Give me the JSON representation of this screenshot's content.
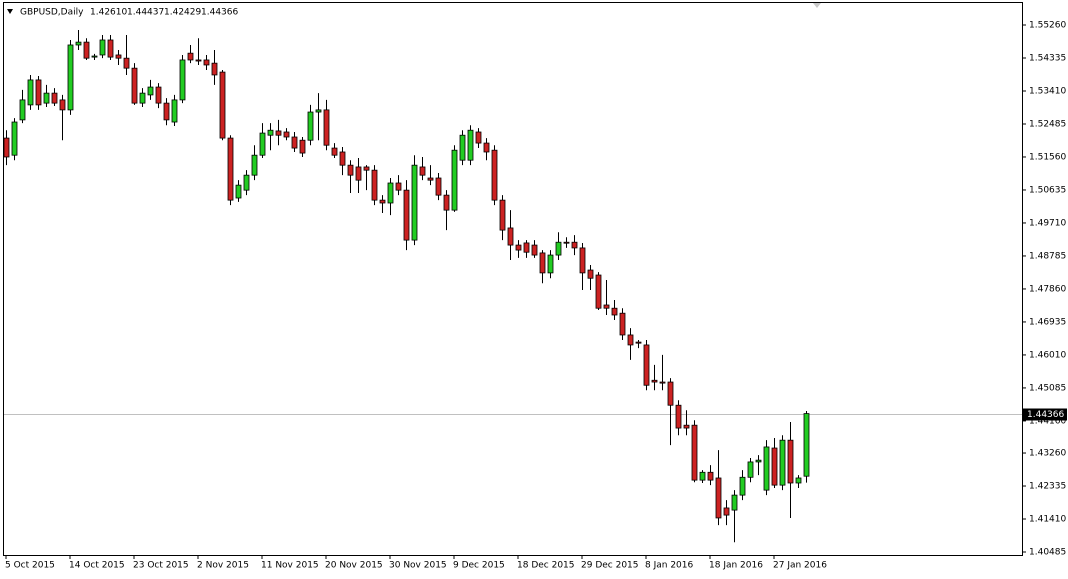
{
  "header": {
    "symbol": "GBPUSD,Daily",
    "values": [
      "1.42610",
      "1.44437",
      "1.42429",
      "1.44366"
    ]
  },
  "chart_data": {
    "type": "candlestick",
    "up_color": "#22cc22",
    "down_color": "#cc2222",
    "outline_color": "#000000",
    "current_price": {
      "value": 1.44366,
      "label": "1.44366"
    },
    "ylim": [
      1.40401,
      1.55905
    ],
    "yticks": [
      {
        "value": 1.5526,
        "label": "1.55260"
      },
      {
        "value": 1.54335,
        "label": "1.54335"
      },
      {
        "value": 1.5341,
        "label": "1.53410"
      },
      {
        "value": 1.52485,
        "label": "1.52485"
      },
      {
        "value": 1.5156,
        "label": "1.51560"
      },
      {
        "value": 1.50635,
        "label": "1.50635"
      },
      {
        "value": 1.4971,
        "label": "1.49710"
      },
      {
        "value": 1.48785,
        "label": "1.48785"
      },
      {
        "value": 1.4786,
        "label": "1.47860"
      },
      {
        "value": 1.46935,
        "label": "1.46935"
      },
      {
        "value": 1.4601,
        "label": "1.46010"
      },
      {
        "value": 1.45085,
        "label": "1.45085"
      },
      {
        "value": 1.4416,
        "label": "1.44160"
      },
      {
        "value": 1.4326,
        "label": "1.43260"
      },
      {
        "value": 1.42335,
        "label": "1.42335"
      },
      {
        "value": 1.4141,
        "label": "1.41410"
      },
      {
        "value": 1.40485,
        "label": "1.40485"
      }
    ],
    "categories": [
      "5 Oct 2015",
      null,
      null,
      null,
      null,
      null,
      null,
      null,
      "14 Oct 2015",
      null,
      null,
      null,
      null,
      null,
      null,
      null,
      "23 Oct 2015",
      null,
      null,
      null,
      null,
      null,
      null,
      null,
      "2 Nov 2015",
      null,
      null,
      null,
      null,
      null,
      null,
      null,
      "11 Nov 2015",
      null,
      null,
      null,
      null,
      null,
      null,
      null,
      "20 Nov 2015",
      null,
      null,
      null,
      null,
      null,
      null,
      null,
      "30 Nov 2015",
      null,
      null,
      null,
      null,
      null,
      null,
      null,
      "9 Dec 2015",
      null,
      null,
      null,
      null,
      null,
      null,
      null,
      "18 Dec 2015",
      null,
      null,
      null,
      null,
      null,
      null,
      null,
      "29 Dec 2015",
      null,
      null,
      null,
      null,
      null,
      null,
      null,
      "8 Jan 2016",
      null,
      null,
      null,
      null,
      null,
      null,
      null,
      "18 Jan 2016",
      null,
      null,
      null,
      null,
      null,
      null,
      null,
      "27 Jan 2016",
      null,
      null,
      null,
      null
    ],
    "open": [
      1.5209,
      1.5161,
      1.526,
      1.5302,
      1.5372,
      1.5307,
      1.5335,
      1.5316,
      1.5288,
      1.547,
      1.5478,
      1.5436,
      1.5442,
      1.5484,
      1.5442,
      1.5433,
      1.5405,
      1.5307,
      1.533,
      1.5352,
      1.5307,
      1.5254,
      1.5316,
      1.5447,
      1.5428,
      1.5428,
      1.5419,
      1.5394,
      1.5209,
      1.5041,
      1.5063,
      1.5105,
      1.5161,
      1.5217,
      1.5229,
      1.5226,
      1.5212,
      1.5203,
      1.5203,
      1.5282,
      1.5288,
      1.5181,
      1.517,
      1.5133,
      1.5128,
      1.5128,
      1.5119,
      1.5035,
      1.5027,
      1.5083,
      1.5063,
      1.4923,
      1.5128,
      1.5097,
      1.5097,
      1.5049,
      1.5007,
      1.5147,
      1.5147,
      1.5226,
      1.5195,
      1.5175,
      1.5035,
      1.4957,
      1.4909,
      1.4915,
      1.4909,
      1.4887,
      1.4831,
      1.4881,
      1.4917,
      1.4917,
      1.4901,
      1.4839,
      1.4825,
      1.4741,
      1.4732,
      1.4718,
      1.4657,
      1.4637,
      1.4629,
      1.453,
      1.4525,
      1.4525,
      1.446,
      1.4404,
      1.4404,
      1.425,
      1.4272,
      1.4256,
      1.4172,
      1.4166,
      1.4208,
      1.4258,
      1.4301,
      1.4222,
      1.434,
      1.4236,
      1.4362,
      1.4242,
      1.4261
    ],
    "high": [
      1.5231,
      1.5265,
      1.5344,
      1.5386,
      1.5383,
      1.5358,
      1.5349,
      1.533,
      1.5484,
      1.5512,
      1.5489,
      1.5445,
      1.5498,
      1.5498,
      1.5456,
      1.5498,
      1.5419,
      1.5349,
      1.5372,
      1.5363,
      1.5321,
      1.533,
      1.5442,
      1.547,
      1.5489,
      1.5442,
      1.5456,
      1.54,
      1.5217,
      1.5091,
      1.5119,
      1.5189,
      1.5251,
      1.5251,
      1.526,
      1.5237,
      1.5226,
      1.5212,
      1.5302,
      1.5335,
      1.5316,
      1.5195,
      1.5184,
      1.5147,
      1.5153,
      1.5133,
      1.5133,
      1.5049,
      1.5097,
      1.5105,
      1.5091,
      1.5161,
      1.5156,
      1.5133,
      1.5111,
      1.5063,
      1.5189,
      1.5231,
      1.5245,
      1.5237,
      1.5209,
      1.5189,
      1.5049,
      1.5007,
      1.4923,
      1.4923,
      1.4923,
      1.4895,
      1.4895,
      1.4945,
      1.4931,
      1.4937,
      1.4915,
      1.4853,
      1.4833,
      1.4811,
      1.4755,
      1.4732,
      1.4676,
      1.4643,
      1.4643,
      1.4573,
      1.4601,
      1.4536,
      1.4474,
      1.4446,
      1.4418,
      1.4278,
      1.4292,
      1.4334,
      1.4194,
      1.4222,
      1.4278,
      1.4312,
      1.432,
      1.4362,
      1.4368,
      1.4376,
      1.4413,
      1.4264,
      1.44437
    ],
    "low": [
      1.5133,
      1.5147,
      1.5251,
      1.5288,
      1.5288,
      1.5296,
      1.5299,
      1.5203,
      1.5274,
      1.5456,
      1.5428,
      1.5428,
      1.5433,
      1.5428,
      1.5414,
      1.5386,
      1.5302,
      1.5296,
      1.5316,
      1.5293,
      1.5245,
      1.5243,
      1.5307,
      1.5419,
      1.5414,
      1.54,
      1.5358,
      1.5203,
      1.5021,
      1.503,
      1.5049,
      1.5091,
      1.5153,
      1.5175,
      1.5189,
      1.5203,
      1.517,
      1.5156,
      1.5189,
      1.5203,
      1.5175,
      1.5153,
      1.5105,
      1.5055,
      1.5055,
      1.5063,
      1.5021,
      1.4999,
      1.4993,
      1.5049,
      1.4895,
      1.4909,
      1.5091,
      1.5077,
      1.5035,
      1.4951,
      1.5002,
      1.5133,
      1.5133,
      1.5181,
      1.5147,
      1.5021,
      1.4923,
      1.4867,
      1.4873,
      1.4873,
      1.4873,
      1.4802,
      1.4816,
      1.4867,
      1.4901,
      1.4881,
      1.4783,
      1.4783,
      1.4727,
      1.4713,
      1.4699,
      1.4643,
      1.4587,
      1.462,
      1.4502,
      1.4502,
      1.4502,
      1.4348,
      1.4376,
      1.4376,
      1.4244,
      1.4242,
      1.4236,
      1.4124,
      1.4124,
      1.4076,
      1.4194,
      1.4244,
      1.4264,
      1.4208,
      1.4228,
      1.4222,
      1.4144,
      1.4228,
      1.42429
    ],
    "close": [
      1.5156,
      1.5254,
      1.5316,
      1.5372,
      1.5302,
      1.5335,
      1.5307,
      1.5288,
      1.547,
      1.5478,
      1.5433,
      1.5439,
      1.5484,
      1.5436,
      1.5433,
      1.5405,
      1.5307,
      1.5335,
      1.5352,
      1.5307,
      1.526,
      1.5316,
      1.5428,
      1.5428,
      1.5425,
      1.5414,
      1.5386,
      1.5209,
      1.5035,
      1.5077,
      1.5105,
      1.5161,
      1.5223,
      1.5231,
      1.5217,
      1.5212,
      1.5181,
      1.5167,
      1.5282,
      1.5288,
      1.5189,
      1.5161,
      1.5133,
      1.5105,
      1.5091,
      1.5119,
      1.5035,
      1.5027,
      1.5083,
      1.5063,
      1.4923,
      1.5133,
      1.5105,
      1.5091,
      1.5049,
      1.5007,
      1.5175,
      1.5217,
      1.5231,
      1.5195,
      1.517,
      1.5035,
      1.4951,
      1.4909,
      1.4895,
      1.4889,
      1.4881,
      1.4831,
      1.4881,
      1.4917,
      1.4915,
      1.4901,
      1.4831,
      1.4816,
      1.4732,
      1.4732,
      1.4713,
      1.4657,
      1.4629,
      1.4634,
      1.4516,
      1.4525,
      1.4522,
      1.446,
      1.4396,
      1.4396,
      1.425,
      1.4272,
      1.425,
      1.4144,
      1.4152,
      1.4208,
      1.4258,
      1.4301,
      1.4306,
      1.4343,
      1.4236,
      1.4362,
      1.4242,
      1.4256,
      1.44366
    ]
  }
}
